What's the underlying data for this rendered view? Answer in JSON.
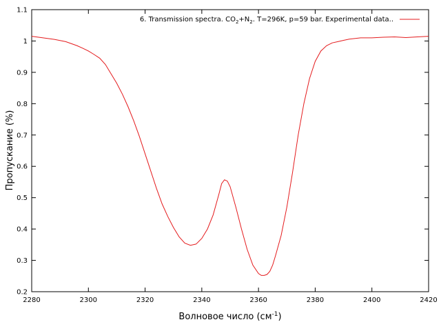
{
  "chart_data": {
    "type": "line",
    "xlabel": "Волновое число (см",
    "xlabel_sup": "-1",
    "xlabel_end": ")",
    "ylabel": "Пропускание (%)",
    "xlim": [
      2280,
      2420
    ],
    "ylim": [
      0.2,
      1.1
    ],
    "xticks": [
      2280,
      2300,
      2320,
      2340,
      2360,
      2380,
      2400,
      2420
    ],
    "xtick_labels": [
      "2280",
      "2300",
      "2320",
      "2340",
      "2360",
      "2380",
      "2400",
      "2420"
    ],
    "yticks": [
      0.2,
      0.3,
      0.4,
      0.5,
      0.6,
      0.7,
      0.8,
      0.9,
      1.0,
      1.1
    ],
    "ytick_labels": [
      "0.2",
      "0.3",
      "0.4",
      "0.5",
      "0.6",
      "0.7",
      "0.8",
      "0.9",
      "1",
      "1.1"
    ],
    "grid": false,
    "legend_position": "top-right",
    "legend": {
      "prefix": "6. Transmission spectra. CO",
      "sub1": "2",
      "mid": "+N",
      "sub2": "2",
      "suffix": ". T=296K, p=59 bar. Experimental data.."
    },
    "series": [
      {
        "color": "#e41a1c",
        "x": [
          2280,
          2284,
          2288,
          2292,
          2296,
          2298,
          2300,
          2302,
          2304,
          2306,
          2308,
          2310,
          2312,
          2314,
          2316,
          2318,
          2320,
          2322,
          2324,
          2326,
          2328,
          2330,
          2332,
          2334,
          2336,
          2338,
          2340,
          2342,
          2344,
          2346,
          2347,
          2348,
          2349,
          2350,
          2352,
          2354,
          2356,
          2358,
          2360,
          2361,
          2362,
          2363,
          2364,
          2365,
          2366,
          2368,
          2370,
          2372,
          2374,
          2376,
          2378,
          2380,
          2382,
          2384,
          2386,
          2388,
          2390,
          2392,
          2396,
          2400,
          2404,
          2408,
          2412,
          2416,
          2420
        ],
        "y": [
          1.015,
          1.01,
          1.005,
          0.998,
          0.985,
          0.977,
          0.968,
          0.957,
          0.945,
          0.925,
          0.895,
          0.865,
          0.83,
          0.79,
          0.745,
          0.695,
          0.64,
          0.585,
          0.53,
          0.48,
          0.44,
          0.405,
          0.375,
          0.355,
          0.348,
          0.352,
          0.37,
          0.4,
          0.445,
          0.51,
          0.545,
          0.557,
          0.553,
          0.535,
          0.47,
          0.4,
          0.335,
          0.285,
          0.258,
          0.252,
          0.252,
          0.255,
          0.265,
          0.285,
          0.315,
          0.38,
          0.47,
          0.58,
          0.7,
          0.8,
          0.88,
          0.935,
          0.968,
          0.985,
          0.994,
          0.998,
          1.002,
          1.006,
          1.01,
          1.01,
          1.012,
          1.013,
          1.011,
          1.013,
          1.015
        ]
      }
    ]
  }
}
